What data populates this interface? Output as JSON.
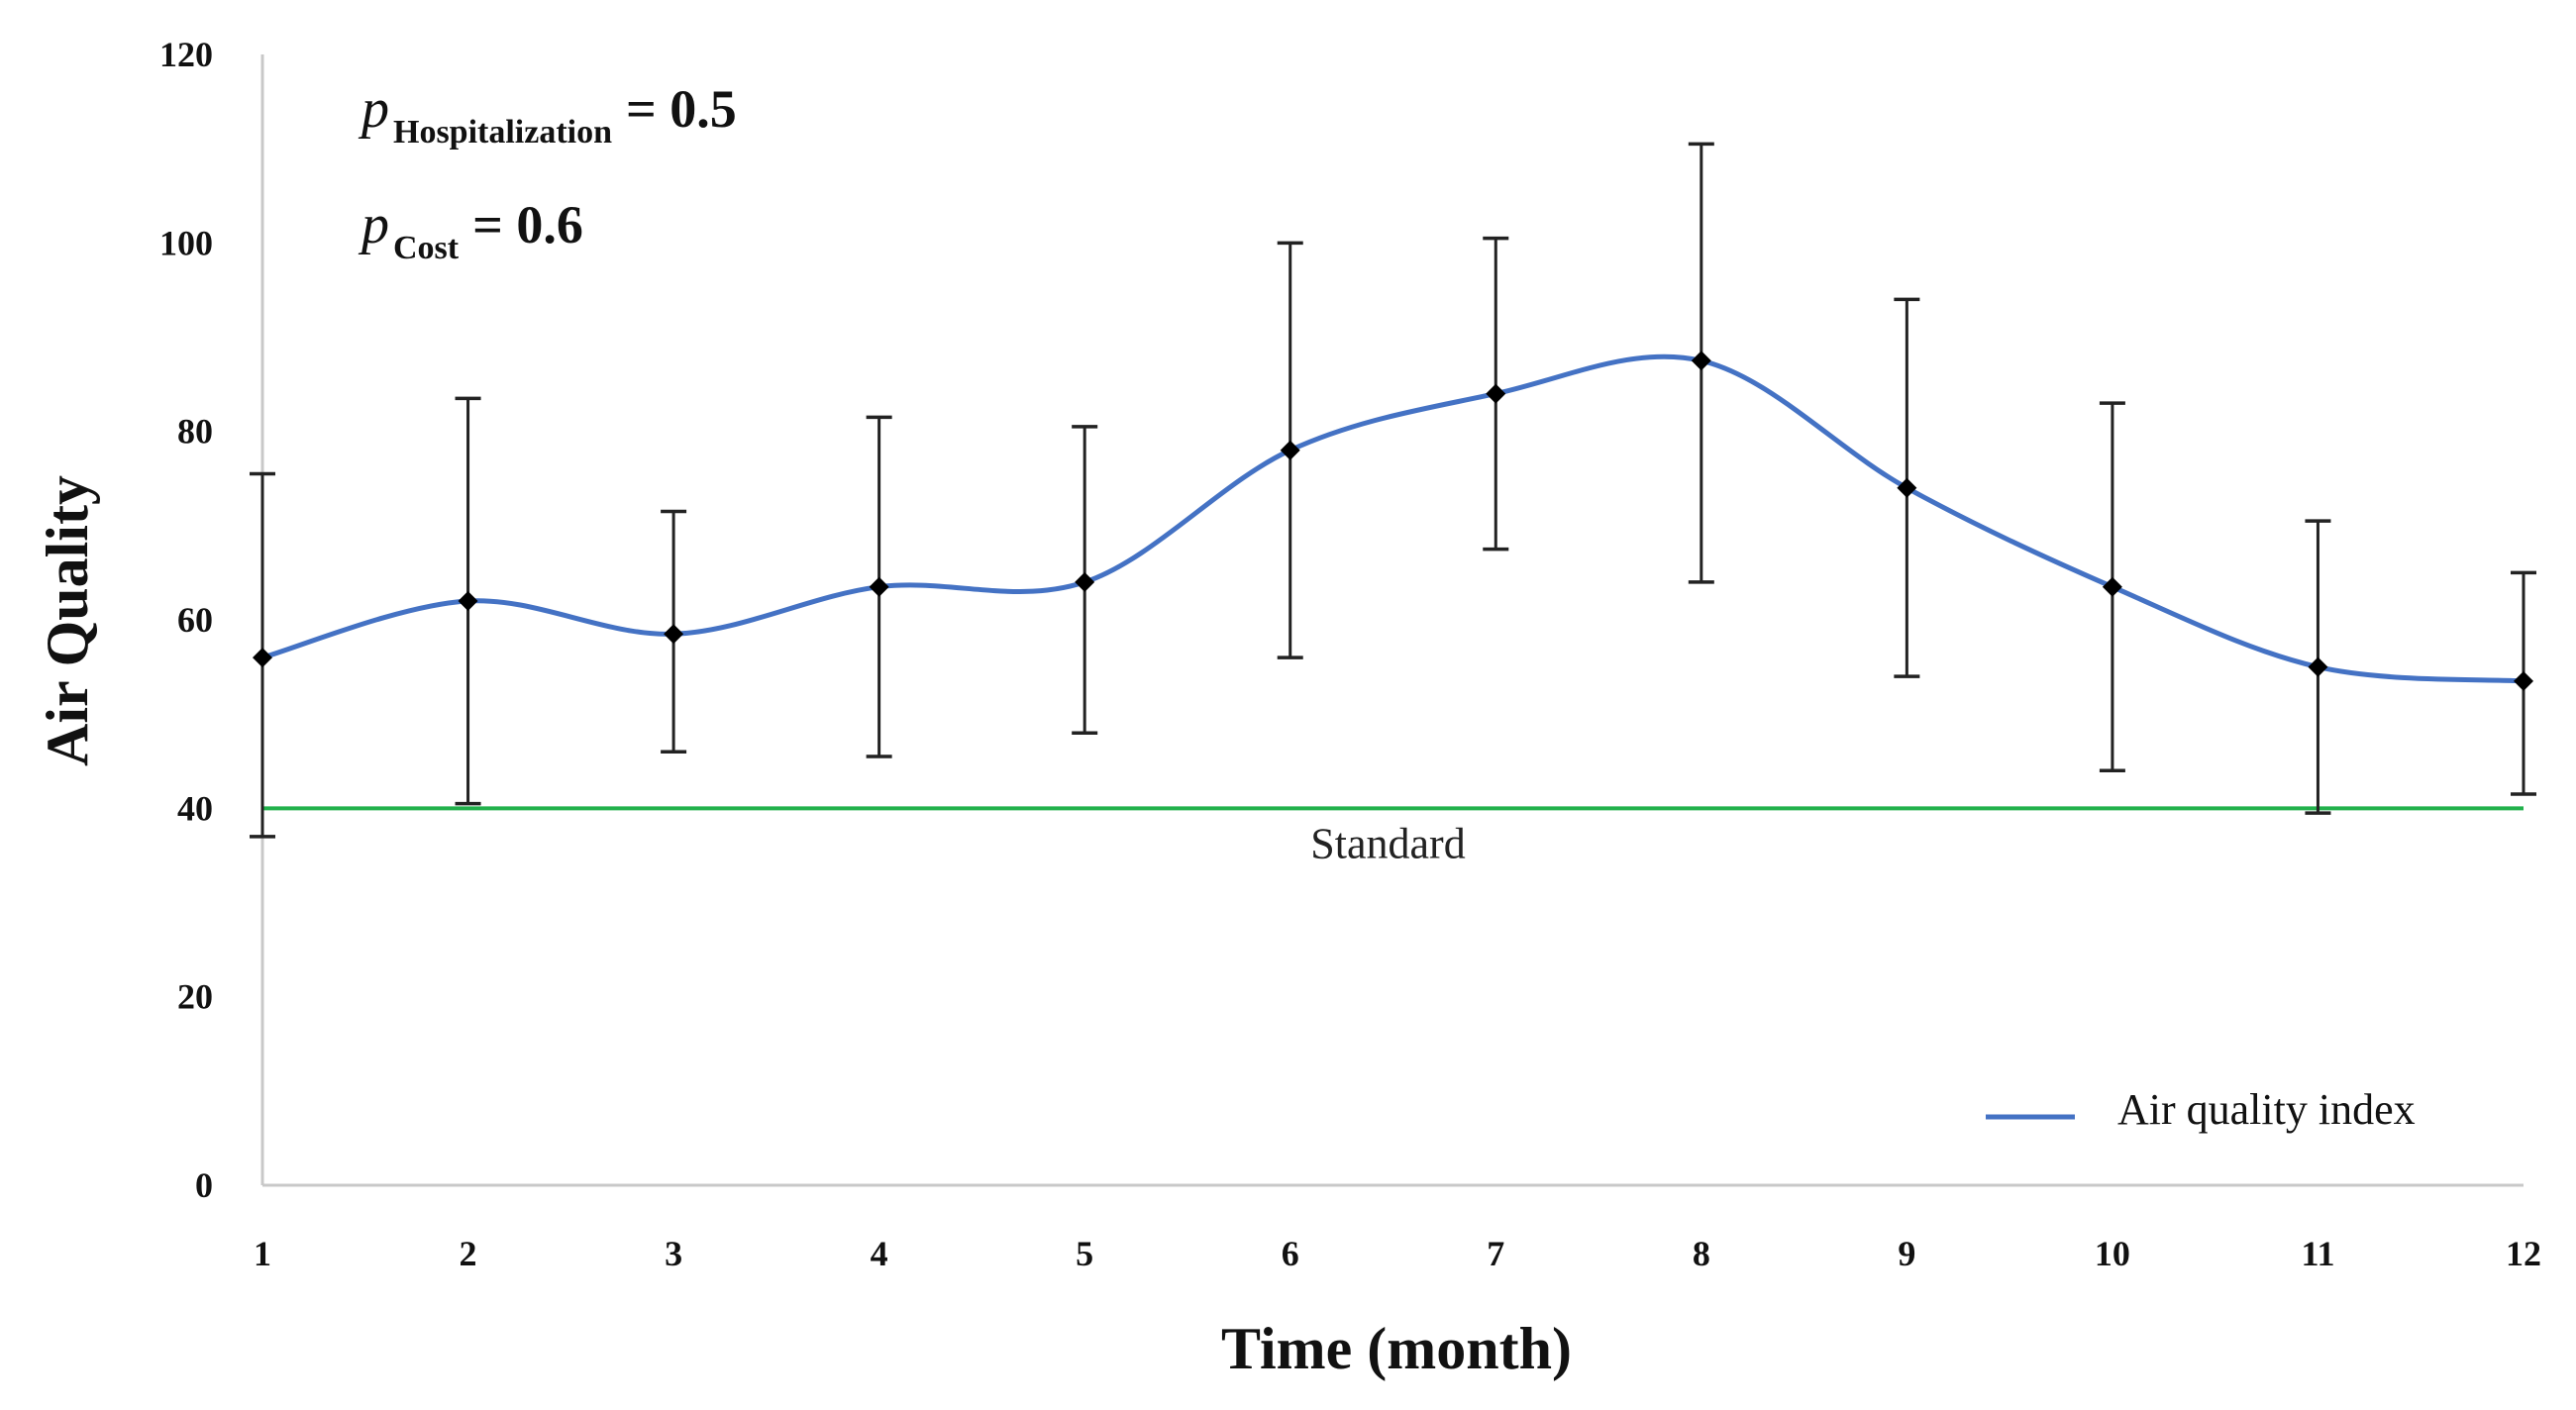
{
  "chart_data": {
    "type": "line",
    "title": "",
    "xlabel": "Time (month)",
    "ylabel": "Air Quality",
    "x": [
      1,
      2,
      3,
      4,
      5,
      6,
      7,
      8,
      9,
      10,
      11,
      12
    ],
    "ylim": [
      0,
      120
    ],
    "yticks": [
      0,
      20,
      40,
      60,
      80,
      100,
      120
    ],
    "grid": false,
    "series": [
      {
        "name": "Air quality index",
        "color": "#4472C4",
        "values": [
          56,
          62,
          58.5,
          63.5,
          64,
          78,
          84,
          87.5,
          74,
          63.5,
          55,
          53.5
        ],
        "error_low": [
          37,
          40.5,
          46,
          45.5,
          48,
          56,
          67.5,
          64,
          54,
          44,
          39.5,
          41.5
        ],
        "error_high": [
          75.5,
          83.5,
          71.5,
          81.5,
          80.5,
          100,
          100.5,
          110.5,
          94,
          83,
          70.5,
          65
        ]
      }
    ],
    "reference_line": {
      "label": "Standard",
      "value": 40,
      "color": "#22B14C"
    },
    "annotations": [
      {
        "symbol": "p",
        "subscript": "Hospitalization",
        "text": "= 0.5"
      },
      {
        "symbol": "p",
        "subscript": "Cost",
        "text": "= 0.6"
      }
    ],
    "legend": {
      "position": "bottom-right",
      "entries": [
        "Air quality index"
      ]
    }
  }
}
